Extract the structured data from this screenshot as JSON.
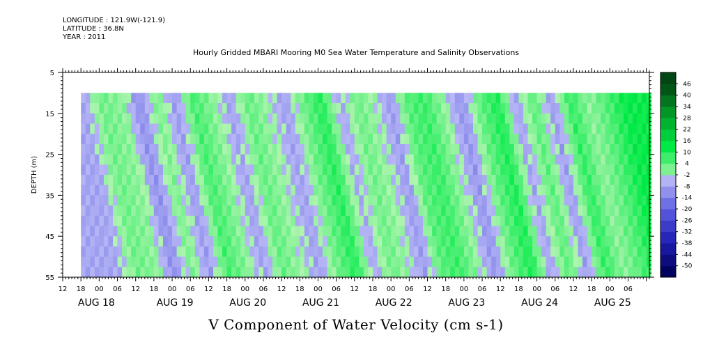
{
  "header": {
    "longitude": "LONGITUDE : 121.9W(-121.9)",
    "latitude": "LATITUDE : 36.8N",
    "year": "YEAR : 2011"
  },
  "title": "Hourly Gridded MBARI Mooring M0 Sea Water Temperature and Salinity Observations",
  "bottom_title": "V Component of Water Velocity (cm s-1)",
  "chart_data": {
    "type": "heatmap",
    "variable": "V Component of Water Velocity",
    "units": "cm s-1",
    "ylabel": "DEPTH (m)",
    "y_reversed": true,
    "ylim": [
      5,
      55
    ],
    "y_ticks": [
      5,
      15,
      25,
      35,
      45,
      55
    ],
    "y_data_range": [
      10,
      55
    ],
    "x_start": "AUG 17 12:00",
    "x_end": "AUG 25 13:00",
    "x_data_start": "AUG 17 18:00",
    "x_hour_labels": [
      "12",
      "18",
      "00",
      "06",
      "12",
      "18",
      "00",
      "06",
      "12",
      "18",
      "00",
      "06",
      "12",
      "18",
      "00",
      "06",
      "12",
      "18",
      "00",
      "06",
      "12",
      "18",
      "00",
      "06",
      "12",
      "18",
      "00",
      "06",
      "12",
      "18",
      "00",
      "06"
    ],
    "x_date_labels": [
      "AUG 18",
      "AUG 19",
      "AUG 20",
      "AUG 21",
      "AUG 22",
      "AUG 23",
      "AUG 24",
      "AUG 25"
    ],
    "colorbar_levels": [
      "46",
      "40",
      "34",
      "28",
      "22",
      "16",
      "10",
      "4",
      "-2",
      "-8",
      "-14",
      "-20",
      "-26",
      "-32",
      "-38",
      "-44",
      "-50"
    ],
    "colorbar_min": -50,
    "colorbar_max": 50,
    "colorbar_step": 6,
    "bands": [
      {
        "t": 18.0,
        "v": -3
      },
      {
        "t": 24.0,
        "v": 6
      },
      {
        "t": 31.0,
        "v": 3
      },
      {
        "t": 36.0,
        "v": -7
      },
      {
        "t": 42.0,
        "v": 5
      },
      {
        "t": 48.0,
        "v": -5
      },
      {
        "t": 54.0,
        "v": 10
      },
      {
        "t": 60.0,
        "v": 4
      },
      {
        "t": 66.0,
        "v": -4
      },
      {
        "t": 72.0,
        "v": 7
      },
      {
        "t": 78.0,
        "v": 2
      },
      {
        "t": 84.0,
        "v": -4
      },
      {
        "t": 90.0,
        "v": 6
      },
      {
        "t": 96.0,
        "v": 13
      },
      {
        "t": 102.0,
        "v": -3
      },
      {
        "t": 108.0,
        "v": 6
      },
      {
        "t": 114.0,
        "v": 1
      },
      {
        "t": 119.0,
        "v": -5
      },
      {
        "t": 124.0,
        "v": 8
      },
      {
        "t": 130.0,
        "v": 11
      },
      {
        "t": 136.0,
        "v": 3
      },
      {
        "t": 142.0,
        "v": -6
      },
      {
        "t": 148.0,
        "v": 7
      },
      {
        "t": 154.0,
        "v": 14
      },
      {
        "t": 160.0,
        "v": -4
      },
      {
        "t": 166.0,
        "v": 8
      },
      {
        "t": 172.0,
        "v": -5
      },
      {
        "t": 178.0,
        "v": 12
      },
      {
        "t": 184.0,
        "v": 3
      },
      {
        "t": 190.0,
        "v": 9
      },
      {
        "t": 196.0,
        "v": 16
      }
    ]
  }
}
